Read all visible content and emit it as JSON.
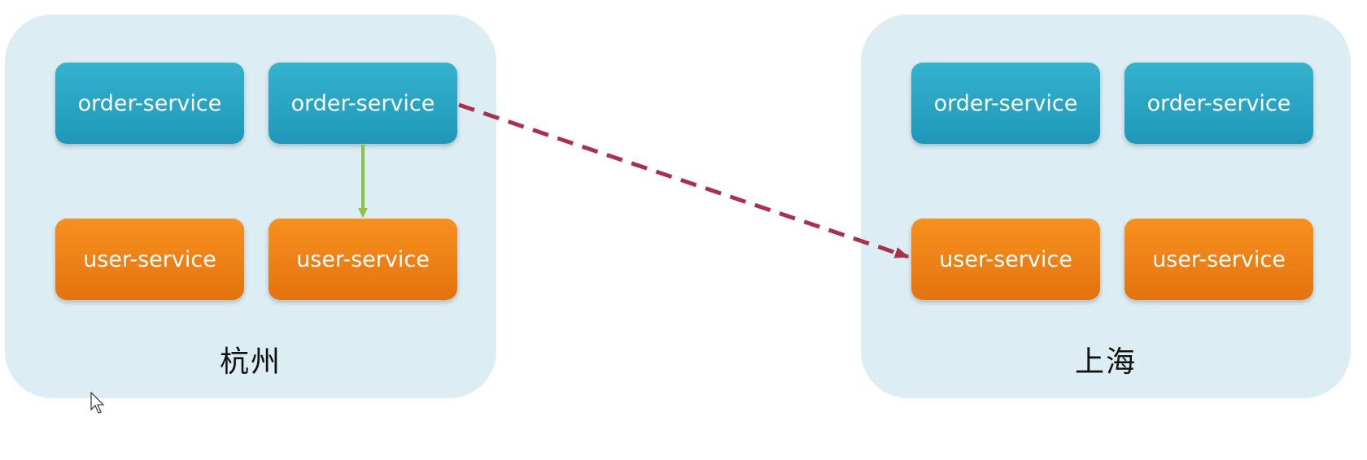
{
  "clusters": [
    {
      "label": "杭州",
      "services": [
        {
          "name": "order-service",
          "kind": "order"
        },
        {
          "name": "order-service",
          "kind": "order"
        },
        {
          "name": "user-service",
          "kind": "user"
        },
        {
          "name": "user-service",
          "kind": "user"
        }
      ]
    },
    {
      "label": "上海",
      "services": [
        {
          "name": "order-service",
          "kind": "order"
        },
        {
          "name": "order-service",
          "kind": "order"
        },
        {
          "name": "user-service",
          "kind": "user"
        },
        {
          "name": "user-service",
          "kind": "user"
        }
      ]
    }
  ],
  "connections": [
    {
      "from": "杭州 order-service (2)",
      "to": "杭州 user-service (2)",
      "style": "solid",
      "color": "#8dc04a"
    },
    {
      "from": "杭州 order-service (2)",
      "to": "上海 user-service (1)",
      "style": "dashed",
      "color": "#a8324e"
    }
  ],
  "colors": {
    "cluster_bg": "#dcedf3",
    "order_service": "#2aa6c4",
    "user_service": "#f08418"
  }
}
